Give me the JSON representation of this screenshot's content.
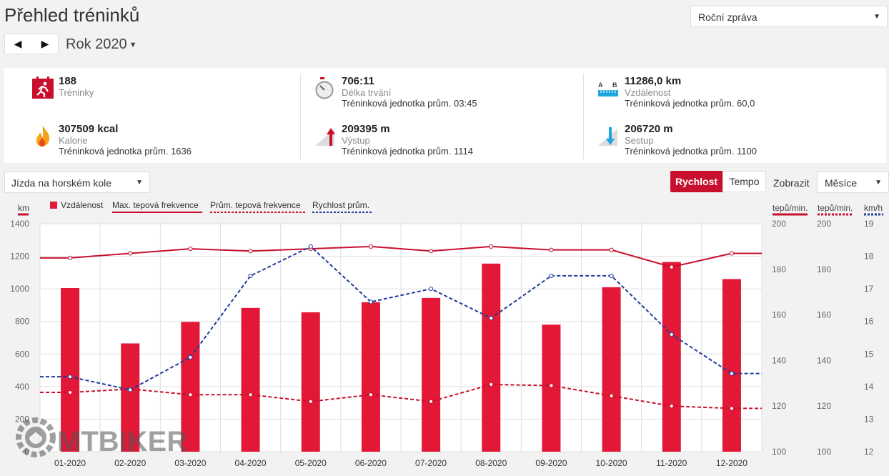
{
  "header": {
    "title": "Přehled tréninků",
    "report_select": "Roční zpráva",
    "year_label": "Rok 2020"
  },
  "stats": {
    "trainings": {
      "value": "188",
      "label": "Tréninky",
      "icon": "calendar-runner-icon"
    },
    "duration": {
      "value": "706:11",
      "label": "Délka trvání",
      "sub": "Tréninková jednotka prům. 03:45",
      "icon": "stopwatch-icon"
    },
    "distance": {
      "value": "11286,0 km",
      "label": "Vzdálenost",
      "sub": "Tréninková jednotka prům. 60,0",
      "icon": "ruler-icon"
    },
    "calories": {
      "value": "307509 kcal",
      "label": "Kalorie",
      "sub": "Tréninková jednotka prům. 1636",
      "icon": "flame-icon"
    },
    "ascent": {
      "value": "209395 m",
      "label": "Výstup",
      "sub": "Tréninková jednotka prům. 1114",
      "icon": "ascent-arrow-icon"
    },
    "descent": {
      "value": "206720 m",
      "label": "Sestup",
      "sub": "Tréninková jednotka prům. 1100",
      "icon": "descent-arrow-icon"
    }
  },
  "controls": {
    "sport_select": "Jízda na horském kole",
    "speed_button": "Rychlost",
    "pace_button": "Tempo",
    "show_label": "Zobrazit",
    "period_select": "Měsíce"
  },
  "colors": {
    "accent": "#c8102e",
    "bar": "#e31837",
    "speed": "#1f3d99"
  },
  "watermark": "MTBIKER",
  "chart_data": {
    "type": "bar",
    "categories": [
      "01-2020",
      "02-2020",
      "03-2020",
      "04-2020",
      "05-2020",
      "06-2020",
      "07-2020",
      "08-2020",
      "09-2020",
      "10-2020",
      "11-2020",
      "12-2020"
    ],
    "legend": [
      "Vzdálenost",
      "Max. tepová frekvence",
      "Prům. tepová frekvence",
      "Rychlost prům."
    ],
    "axes": {
      "left": {
        "unit": "km",
        "range": [
          0,
          1400
        ],
        "ticks": [
          0,
          200,
          400,
          600,
          800,
          1000,
          1200,
          1400
        ]
      },
      "hr_max": {
        "unit": "tepů/min.",
        "range": [
          100,
          200
        ],
        "ticks": [
          100,
          120,
          140,
          160,
          180,
          200
        ]
      },
      "hr_avg": {
        "unit": "tepů/min.",
        "range": [
          100,
          200
        ],
        "ticks": [
          100,
          120,
          140,
          160,
          180,
          200
        ]
      },
      "speed": {
        "unit": "km/h",
        "range": [
          12,
          19
        ],
        "ticks": [
          12,
          13,
          14,
          15,
          16,
          17,
          18,
          19
        ]
      }
    },
    "grid": true,
    "series": [
      {
        "name": "Vzdálenost",
        "type": "bar",
        "axis": "left",
        "values": [
          1005,
          665,
          797,
          883,
          856,
          918,
          944,
          1155,
          780,
          1010,
          1165,
          1060
        ]
      },
      {
        "name": "Max. tepová frekvence",
        "type": "line",
        "axis": "hr_max",
        "values": [
          185,
          187,
          189,
          188,
          189,
          190,
          188,
          190,
          188.5,
          188.5,
          181,
          187
        ]
      },
      {
        "name": "Prům. tepová frekvence",
        "type": "line",
        "axis": "hr_avg",
        "values": [
          126,
          127.5,
          125,
          125,
          122,
          125,
          122,
          129.5,
          129,
          124.5,
          120,
          119
        ]
      },
      {
        "name": "Rychlost prům.",
        "type": "line",
        "axis": "speed",
        "values": [
          14.3,
          13.9,
          14.9,
          17.4,
          18.3,
          16.6,
          17.0,
          16.1,
          17.4,
          17.4,
          15.6,
          14.4
        ]
      }
    ]
  }
}
